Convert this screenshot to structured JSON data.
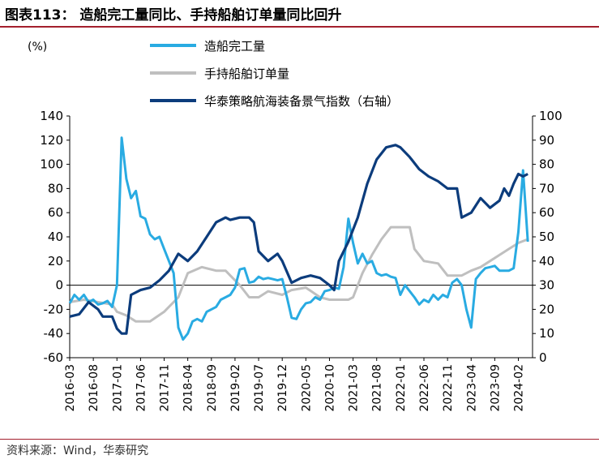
{
  "figure": {
    "title": "图表113： 造船完工量同比、手持船舶订单量同比回升",
    "source": "资料来源：Wind，华泰研究",
    "left_unit": "(%)"
  },
  "chart_data": {
    "type": "line",
    "left_axis": {
      "ylim": [
        -60,
        140
      ],
      "ticks": [
        -60,
        -40,
        -20,
        0,
        20,
        40,
        60,
        80,
        100,
        120,
        140
      ]
    },
    "right_axis": {
      "ylim": [
        0,
        100
      ],
      "ticks": [
        0,
        10,
        20,
        30,
        40,
        50,
        60,
        70,
        80,
        90,
        100
      ]
    },
    "x_tick_labels": [
      "2016-03",
      "2016-08",
      "2017-01",
      "2017-06",
      "2017-11",
      "2018-04",
      "2018-09",
      "2019-02",
      "2019-07",
      "2019-12",
      "2020-05",
      "2020-10",
      "2021-03",
      "2021-08",
      "2022-01",
      "2022-06",
      "2022-11",
      "2023-04",
      "2023-09",
      "2024-02"
    ],
    "x_range": [
      "2016-03",
      "2024-05"
    ],
    "grid": false,
    "legend_position": "top",
    "series": [
      {
        "name": "造船完工量",
        "axis": "left",
        "color": "#29abe2",
        "points": [
          [
            "2016-03",
            -15
          ],
          [
            "2016-04",
            -8
          ],
          [
            "2016-05",
            -12
          ],
          [
            "2016-06",
            -8
          ],
          [
            "2016-07",
            -14
          ],
          [
            "2016-08",
            -12
          ],
          [
            "2016-09",
            -16
          ],
          [
            "2016-10",
            -15
          ],
          [
            "2016-11",
            -13
          ],
          [
            "2016-12",
            -18
          ],
          [
            "2017-01",
            0
          ],
          [
            "2017-02",
            122
          ],
          [
            "2017-03",
            88
          ],
          [
            "2017-04",
            72
          ],
          [
            "2017-05",
            78
          ],
          [
            "2017-06",
            57
          ],
          [
            "2017-07",
            55
          ],
          [
            "2017-08",
            42
          ],
          [
            "2017-09",
            38
          ],
          [
            "2017-10",
            40
          ],
          [
            "2017-11",
            30
          ],
          [
            "2017-12",
            20
          ],
          [
            "2018-01",
            10
          ],
          [
            "2018-02",
            -35
          ],
          [
            "2018-03",
            -45
          ],
          [
            "2018-04",
            -40
          ],
          [
            "2018-05",
            -30
          ],
          [
            "2018-06",
            -28
          ],
          [
            "2018-07",
            -30
          ],
          [
            "2018-08",
            -22
          ],
          [
            "2018-09",
            -20
          ],
          [
            "2018-10",
            -18
          ],
          [
            "2018-11",
            -12
          ],
          [
            "2018-12",
            -10
          ],
          [
            "2019-01",
            -8
          ],
          [
            "2019-02",
            -2
          ],
          [
            "2019-03",
            13
          ],
          [
            "2019-04",
            14
          ],
          [
            "2019-05",
            2
          ],
          [
            "2019-06",
            3
          ],
          [
            "2019-07",
            7
          ],
          [
            "2019-08",
            5
          ],
          [
            "2019-09",
            6
          ],
          [
            "2019-10",
            5
          ],
          [
            "2019-11",
            4
          ],
          [
            "2019-12",
            5
          ],
          [
            "2020-01",
            -10
          ],
          [
            "2020-02",
            -27
          ],
          [
            "2020-03",
            -28
          ],
          [
            "2020-04",
            -20
          ],
          [
            "2020-05",
            -15
          ],
          [
            "2020-06",
            -14
          ],
          [
            "2020-07",
            -10
          ],
          [
            "2020-08",
            -12
          ],
          [
            "2020-09",
            -5
          ],
          [
            "2020-10",
            -4
          ],
          [
            "2020-11",
            -2
          ],
          [
            "2020-12",
            -3
          ],
          [
            "2021-01",
            15
          ],
          [
            "2021-02",
            55
          ],
          [
            "2021-03",
            35
          ],
          [
            "2021-04",
            18
          ],
          [
            "2021-05",
            26
          ],
          [
            "2021-06",
            18
          ],
          [
            "2021-07",
            20
          ],
          [
            "2021-08",
            10
          ],
          [
            "2021-09",
            8
          ],
          [
            "2021-10",
            9
          ],
          [
            "2021-11",
            7
          ],
          [
            "2021-12",
            6
          ],
          [
            "2022-01",
            -8
          ],
          [
            "2022-02",
            0
          ],
          [
            "2022-03",
            -5
          ],
          [
            "2022-04",
            -10
          ],
          [
            "2022-05",
            -16
          ],
          [
            "2022-06",
            -12
          ],
          [
            "2022-07",
            -14
          ],
          [
            "2022-08",
            -8
          ],
          [
            "2022-09",
            -12
          ],
          [
            "2022-10",
            -8
          ],
          [
            "2022-11",
            -10
          ],
          [
            "2022-12",
            2
          ],
          [
            "2023-01",
            5
          ],
          [
            "2023-02",
            0
          ],
          [
            "2023-03",
            -20
          ],
          [
            "2023-04",
            -35
          ],
          [
            "2023-05",
            5
          ],
          [
            "2023-06",
            10
          ],
          [
            "2023-07",
            14
          ],
          [
            "2023-08",
            15
          ],
          [
            "2023-09",
            16
          ],
          [
            "2023-10",
            12
          ],
          [
            "2023-11",
            12
          ],
          [
            "2023-12",
            12
          ],
          [
            "2024-01",
            14
          ],
          [
            "2024-02",
            44
          ],
          [
            "2024-03",
            95
          ],
          [
            "2024-04",
            36
          ]
        ]
      },
      {
        "name": "手持船舶订单量",
        "axis": "left",
        "color": "#bfbfbf",
        "points": [
          [
            "2016-03",
            -14
          ],
          [
            "2016-06",
            -12
          ],
          [
            "2016-09",
            -14
          ],
          [
            "2016-12",
            -16
          ],
          [
            "2017-01",
            -22
          ],
          [
            "2017-03",
            -25
          ],
          [
            "2017-05",
            -30
          ],
          [
            "2017-08",
            -30
          ],
          [
            "2017-11",
            -22
          ],
          [
            "2018-02",
            -10
          ],
          [
            "2018-04",
            10
          ],
          [
            "2018-07",
            15
          ],
          [
            "2018-10",
            12
          ],
          [
            "2018-12",
            12
          ],
          [
            "2019-01",
            8
          ],
          [
            "2019-03",
            0
          ],
          [
            "2019-05",
            -10
          ],
          [
            "2019-07",
            -10
          ],
          [
            "2019-09",
            -5
          ],
          [
            "2019-12",
            -8
          ],
          [
            "2020-02",
            -4
          ],
          [
            "2020-05",
            -2
          ],
          [
            "2020-08",
            -10
          ],
          [
            "2020-10",
            -12
          ],
          [
            "2020-12",
            -12
          ],
          [
            "2021-02",
            -12
          ],
          [
            "2021-03",
            -10
          ],
          [
            "2021-05",
            10
          ],
          [
            "2021-07",
            25
          ],
          [
            "2021-09",
            38
          ],
          [
            "2021-11",
            48
          ],
          [
            "2022-01",
            48
          ],
          [
            "2022-03",
            48
          ],
          [
            "2022-04",
            30
          ],
          [
            "2022-06",
            20
          ],
          [
            "2022-09",
            18
          ],
          [
            "2022-11",
            8
          ],
          [
            "2023-02",
            8
          ],
          [
            "2023-04",
            12
          ],
          [
            "2023-06",
            15
          ],
          [
            "2023-08",
            20
          ],
          [
            "2023-10",
            25
          ],
          [
            "2023-12",
            30
          ],
          [
            "2024-02",
            35
          ],
          [
            "2024-04",
            38
          ]
        ]
      },
      {
        "name": "华泰策略航海装备景气指数（右轴）",
        "axis": "right",
        "color": "#0c3c7c",
        "points": [
          [
            "2016-03",
            17
          ],
          [
            "2016-05",
            18
          ],
          [
            "2016-07",
            23
          ],
          [
            "2016-09",
            20
          ],
          [
            "2016-10",
            17
          ],
          [
            "2016-12",
            17
          ],
          [
            "2017-01",
            12
          ],
          [
            "2017-02",
            10
          ],
          [
            "2017-03",
            10
          ],
          [
            "2017-04",
            26
          ],
          [
            "2017-06",
            28
          ],
          [
            "2017-08",
            29
          ],
          [
            "2017-10",
            32
          ],
          [
            "2017-12",
            36
          ],
          [
            "2018-02",
            43
          ],
          [
            "2018-04",
            40
          ],
          [
            "2018-06",
            44
          ],
          [
            "2018-08",
            50
          ],
          [
            "2018-10",
            56
          ],
          [
            "2018-12",
            58
          ],
          [
            "2019-01",
            57
          ],
          [
            "2019-03",
            58
          ],
          [
            "2019-05",
            58
          ],
          [
            "2019-06",
            56
          ],
          [
            "2019-07",
            44
          ],
          [
            "2019-09",
            40
          ],
          [
            "2019-11",
            43
          ],
          [
            "2019-12",
            40
          ],
          [
            "2020-02",
            31
          ],
          [
            "2020-04",
            33
          ],
          [
            "2020-06",
            34
          ],
          [
            "2020-08",
            33
          ],
          [
            "2020-10",
            30
          ],
          [
            "2020-11",
            28
          ],
          [
            "2020-12",
            40
          ],
          [
            "2021-02",
            48
          ],
          [
            "2021-04",
            58
          ],
          [
            "2021-06",
            72
          ],
          [
            "2021-08",
            82
          ],
          [
            "2021-10",
            87
          ],
          [
            "2021-12",
            88
          ],
          [
            "2022-01",
            87
          ],
          [
            "2022-03",
            83
          ],
          [
            "2022-05",
            78
          ],
          [
            "2022-07",
            75
          ],
          [
            "2022-09",
            73
          ],
          [
            "2022-11",
            70
          ],
          [
            "2023-01",
            70
          ],
          [
            "2023-02",
            58
          ],
          [
            "2023-04",
            60
          ],
          [
            "2023-06",
            66
          ],
          [
            "2023-08",
            62
          ],
          [
            "2023-10",
            65
          ],
          [
            "2023-11",
            70
          ],
          [
            "2023-12",
            67
          ],
          [
            "2024-01",
            72
          ],
          [
            "2024-02",
            76
          ],
          [
            "2024-03",
            75
          ],
          [
            "2024-04",
            76
          ]
        ]
      }
    ]
  }
}
